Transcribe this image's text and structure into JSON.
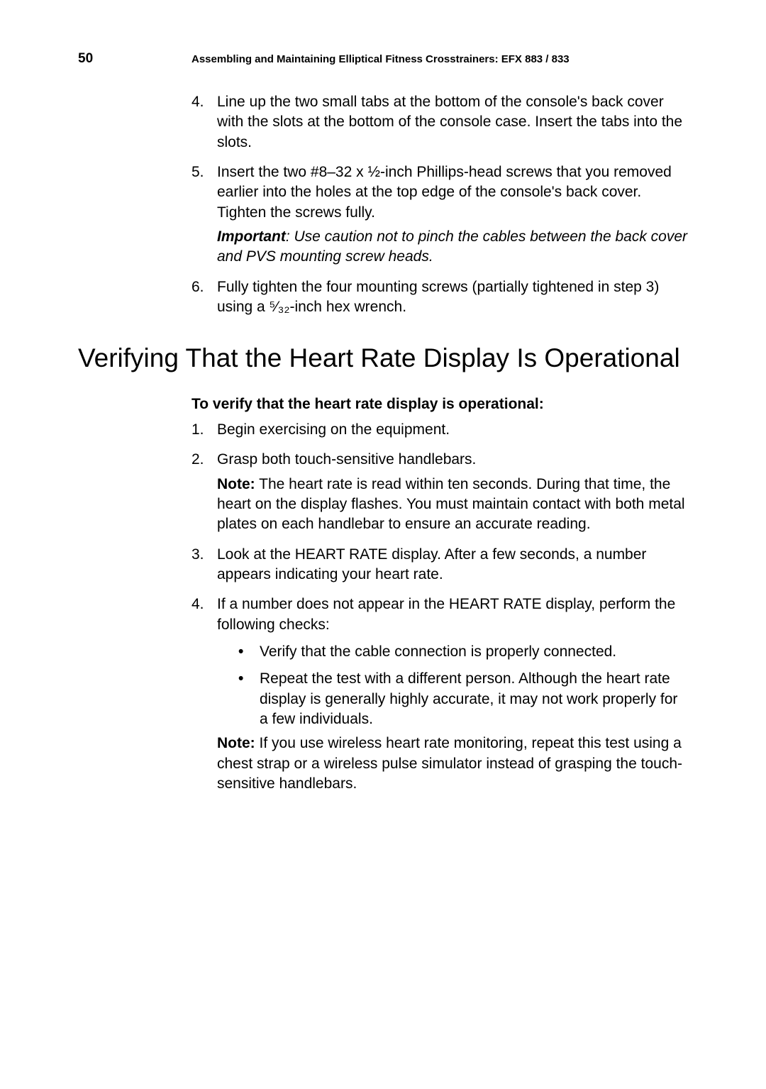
{
  "page_number": "50",
  "header_title": "Assembling and Maintaining Elliptical Fitness Crosstrainers: EFX 883 / 833",
  "top_list": [
    {
      "num": "4.",
      "text": "Line up the two small tabs at the bottom of the console's back cover with the slots at the bottom of the console case. Insert the tabs into the slots."
    },
    {
      "num": "5.",
      "text": "Insert the two #8–32 x ½-inch Phillips-head screws that you removed earlier into the holes at the top edge of the console's back cover. Tighten the screws fully."
    },
    {
      "num": "6.",
      "text": "Fully tighten the four mounting screws (partially tightened in step 3) using a ⁵⁄₃₂-inch hex wrench."
    }
  ],
  "important_label": "Important",
  "important_text": ": Use caution not to pinch the cables between the back cover and PVS mounting screw heads.",
  "section_heading": "Verifying That the Heart Rate Display Is Operational",
  "sub_heading": "To verify that the heart rate display is operational:",
  "verify_list": [
    {
      "num": "1.",
      "text": "Begin exercising on the equipment."
    },
    {
      "num": "2.",
      "text": "Grasp both touch-sensitive handlebars."
    },
    {
      "num": "3.",
      "text": "Look at the HEART RATE display. After a few seconds, a number appears indicating your heart rate."
    },
    {
      "num": "4.",
      "text": "If a number does not appear in the HEART RATE display, perform the following checks:"
    }
  ],
  "note1_label": "Note:",
  "note1_text": " The heart rate is read within ten seconds. During that time, the heart on the display flashes. You must maintain contact with both metal plates on each handlebar to ensure an accurate reading.",
  "bullets": [
    "Verify that the cable connection is properly connected.",
    "Repeat the test with a different person. Although the heart rate display is generally highly accurate, it may not work properly for a few individuals."
  ],
  "note2_label": "Note:",
  "note2_text": " If you use wireless heart rate monitoring, repeat this test using a chest strap or a wireless pulse simulator instead of grasping the touch-sensitive handlebars.",
  "colors": {
    "bg": "#ffffff",
    "text": "#000000"
  },
  "typography": {
    "body_fontsize": 21,
    "header_fontsize": 15,
    "page_number_fontsize": 19,
    "section_heading_fontsize": 37
  }
}
